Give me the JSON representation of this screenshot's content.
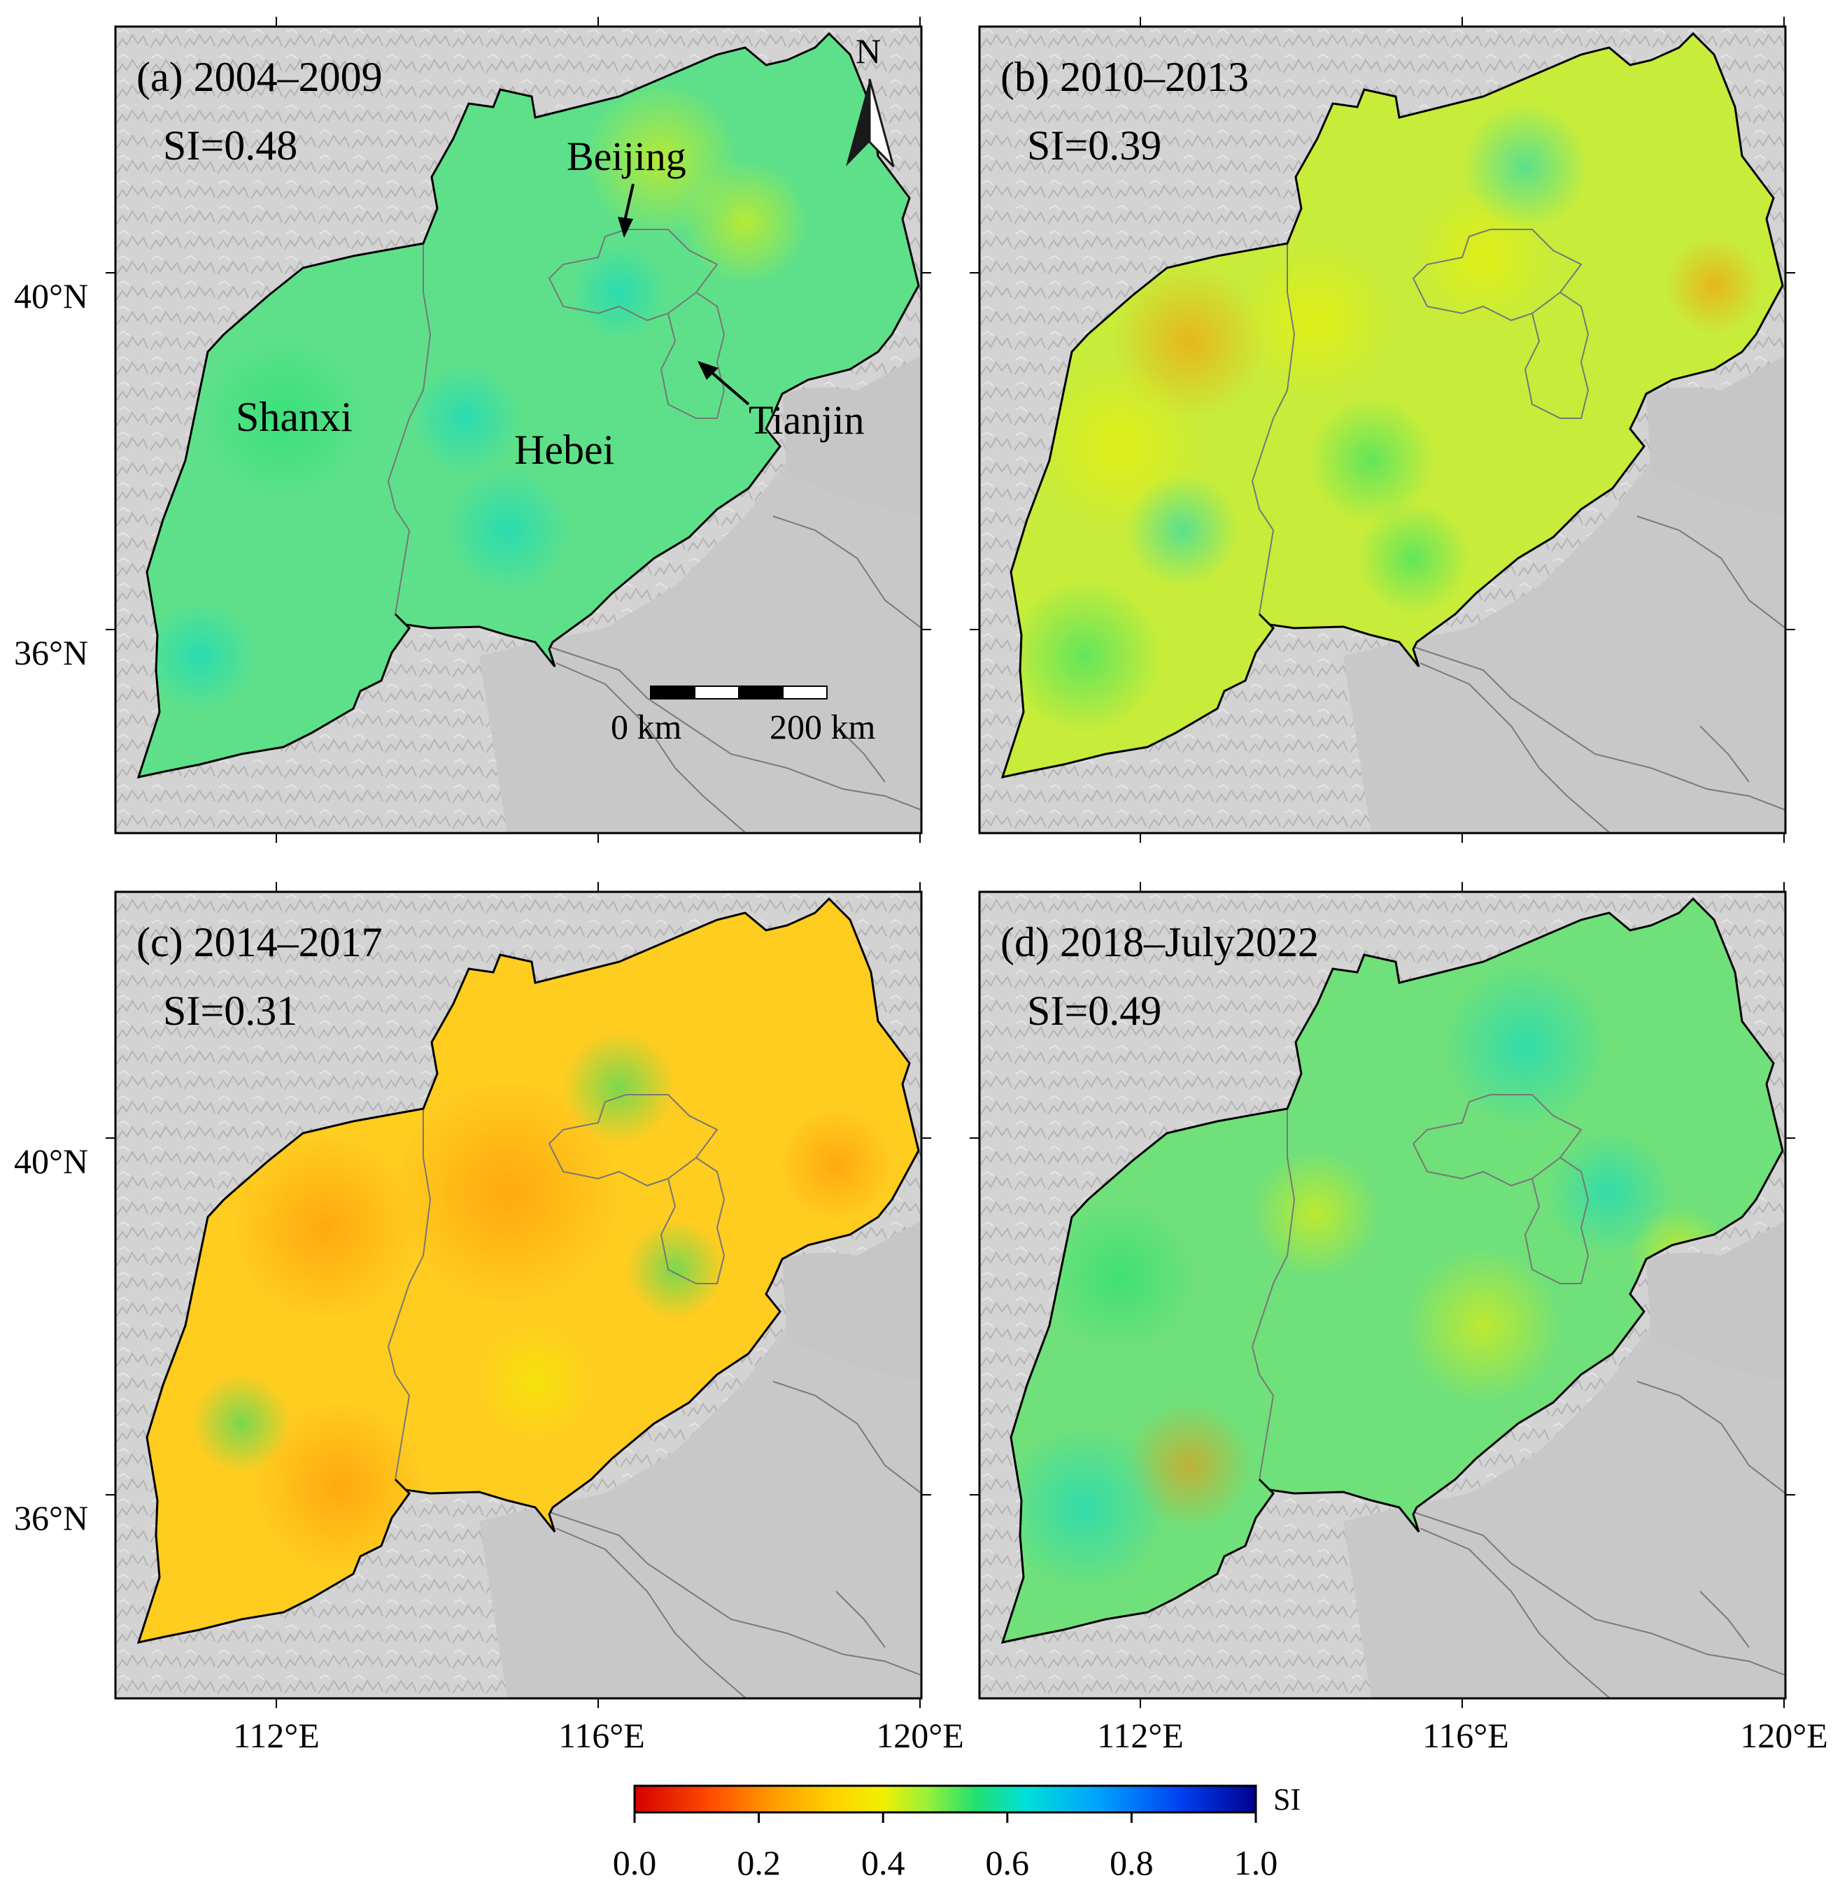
{
  "figure": {
    "panels": [
      {
        "id": "a",
        "title": "(a) 2004–2009",
        "si_label": "SI=0.48",
        "si": 0.48
      },
      {
        "id": "b",
        "title": "(b) 2010–2013",
        "si_label": "SI=0.39",
        "si": 0.39
      },
      {
        "id": "c",
        "title": "(c) 2014–2017",
        "si_label": "SI=0.31",
        "si": 0.31
      },
      {
        "id": "d",
        "title": "(d) 2018–July2022",
        "si_label": "SI=0.49",
        "si": 0.49
      }
    ],
    "lat_ticks": [
      "40°N",
      "36°N"
    ],
    "lon_ticks": [
      "112°E",
      "116°E",
      "120°E"
    ],
    "annotations": {
      "north": "N",
      "beijing": "Beijing",
      "tianjin": "Tianjin",
      "shanxi": "Shanxi",
      "hebei": "Hebei",
      "scale_left": "0 km",
      "scale_right": "200 km"
    },
    "colorbar": {
      "label": "SI",
      "ticks": [
        "0.0",
        "0.2",
        "0.4",
        "0.6",
        "0.8",
        "1.0"
      ],
      "colors": [
        "#d40000",
        "#ff6a00",
        "#ffb300",
        "#f7f000",
        "#c8f000",
        "#1ee06a",
        "#00e0d0",
        "#00a8ff",
        "#0040ff",
        "#0000a0"
      ]
    },
    "region_colors": {
      "a": "#5ee08a",
      "b": "#c7ec3a",
      "c": "#ffcc20",
      "d": "#70e07a"
    },
    "terrain_colors": {
      "background": "#d2d2d2",
      "sea": "#c8c8c8"
    }
  }
}
